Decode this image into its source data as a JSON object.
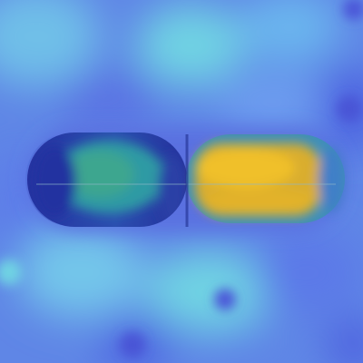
{
  "image": {
    "kind": "heatmap-overlay",
    "subject": "capsule",
    "colors": {
      "background": "#5f86e6",
      "cool": "#4b5fe0",
      "cyan": "#6fd3e3",
      "deep_blue": "#2432a0",
      "teal": "#2f9aa4",
      "hot": "#e2b22a",
      "hot_core": "#f0c02a"
    }
  }
}
